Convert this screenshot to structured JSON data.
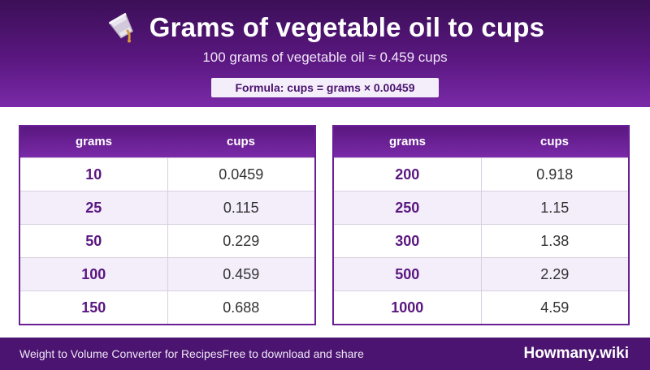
{
  "header": {
    "title": "Grams of vegetable oil to cups",
    "subtitle": "100 grams of vegetable oil ≈ 0.459 cups",
    "formula": "Formula: cups = grams × 0.00459",
    "icon": "pouring-cup-icon"
  },
  "tables": [
    {
      "headers": {
        "grams": "grams",
        "cups": "cups"
      },
      "rows": [
        {
          "grams": "10",
          "cups": "0.0459"
        },
        {
          "grams": "25",
          "cups": "0.115"
        },
        {
          "grams": "50",
          "cups": "0.229"
        },
        {
          "grams": "100",
          "cups": "0.459"
        },
        {
          "grams": "150",
          "cups": "0.688"
        }
      ]
    },
    {
      "headers": {
        "grams": "grams",
        "cups": "cups"
      },
      "rows": [
        {
          "grams": "200",
          "cups": "0.918"
        },
        {
          "grams": "250",
          "cups": "1.15"
        },
        {
          "grams": "300",
          "cups": "1.38"
        },
        {
          "grams": "500",
          "cups": "2.29"
        },
        {
          "grams": "1000",
          "cups": "4.59"
        }
      ]
    }
  ],
  "footer": {
    "left_text": "Weight to Volume Converter for Recipes",
    "left_subtext": "Free to download and share",
    "brand": "Howmany.wiki"
  },
  "colors": {
    "header_dark": "#3b0f57",
    "header_light": "#7a2aa8",
    "accent": "#5a1780",
    "row_alt": "#f3eefa",
    "footer_bg": "#4a1470"
  }
}
